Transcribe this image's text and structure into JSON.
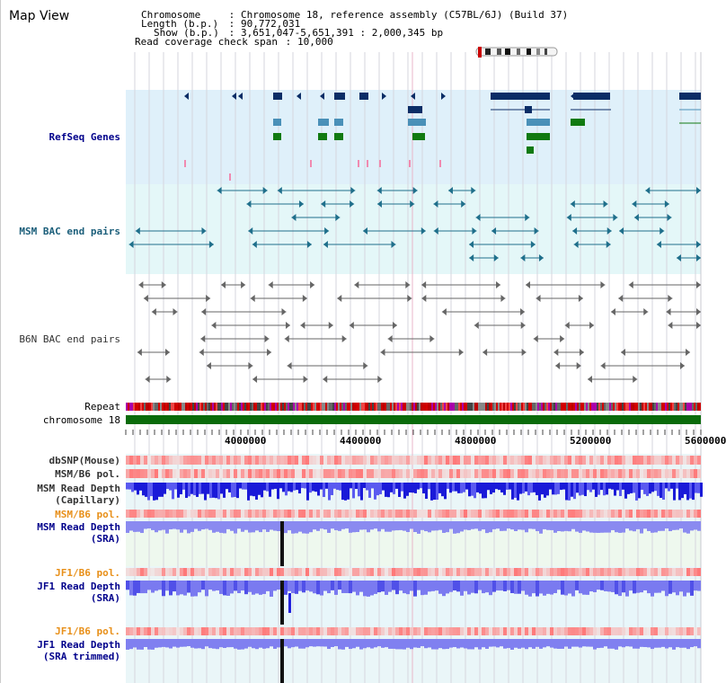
{
  "app": {
    "title": "Map View"
  },
  "header": {
    "chromosome_label": "Chromosome",
    "chromosome_value": "Chromosome 18, reference assembly (C57BL/6J) (Build 37)",
    "length_label": "Length (b.p.)",
    "length_value": "90,772,031",
    "show_label": "Show (b.p.)",
    "show_value": "3,651,047-5,651,391 : 2,000,345 bp",
    "span_label": "Read coverage check span",
    "span_value": "10,000",
    "sep": " : "
  },
  "tracks": {
    "refseq": "RefSeq Genes",
    "msm_bac": "MSM BAC end pairs",
    "b6n_bac": "B6N BAC end pairs",
    "repeat": "Repeat",
    "chromosome": "chromosome 18",
    "dbsnp": "dbSNP(Mouse)",
    "msm_pol": "MSM/B6 pol.",
    "msm_depth_cap_1": "MSM Read Depth",
    "msm_depth_cap_2": "(Capillary)",
    "msm_pol2": "MSM/B6 pol.",
    "msm_depth_sra_1": "MSM Read Depth",
    "msm_depth_sra_2": "(SRA)",
    "jf1_pol": "JF1/B6 pol.",
    "jf1_depth_sra_1": "JF1 Read Depth",
    "jf1_depth_sra_2": "(SRA)",
    "jf1_pol2": "JF1/B6 pol.",
    "jf1_trim_1": "JF1 Read Depth",
    "jf1_trim_2": "(SRA trimmed)"
  },
  "ruler": {
    "ticks": [
      "4000000",
      "4400000",
      "4800000",
      "5200000",
      "5600000"
    ]
  },
  "colors": {
    "refseq_dark": "#0b2d66",
    "refseq_light": "#4a90b8",
    "refseq_green": "#117a11",
    "msm_bac": "#1f6f8b",
    "b6n_bac": "#666666",
    "msm_label": "#1b5e7a",
    "blue_label": "#00008b",
    "orange_label": "#e8901a",
    "chrom_green": "#0a6b0a"
  }
}
